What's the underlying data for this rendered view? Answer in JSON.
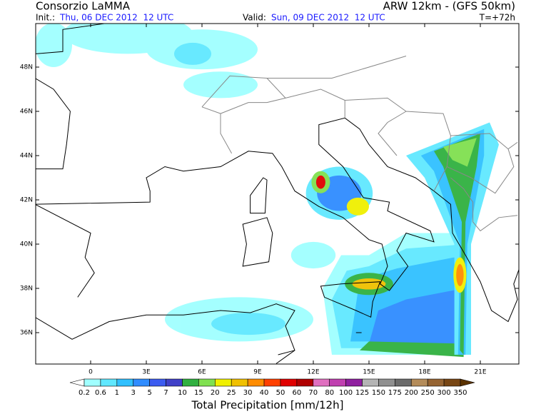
{
  "header": {
    "title": "Consorzio LaMMA",
    "model": "ARW 12km - (GFS 50km)",
    "init_label": "Init.:",
    "init": "Thu, 06 DEC 2012  12 UTC",
    "valid_label": "Valid:",
    "valid": "Sun, 09 DEC 2012  12 UTC",
    "lead": "T=+72h"
  },
  "map": {
    "lat_labels": [
      "36N",
      "38N",
      "40N",
      "42N",
      "44N",
      "46N",
      "48N"
    ],
    "lon_labels": [
      "0",
      "3E",
      "6E",
      "9E",
      "12E",
      "15E",
      "18E",
      "21E"
    ]
  },
  "colorbar": {
    "levels": [
      0.2,
      0.6,
      1,
      3,
      5,
      7,
      10,
      15,
      20,
      25,
      30,
      40,
      50,
      60,
      70,
      80,
      100,
      125,
      150,
      175,
      200,
      250,
      300,
      350
    ],
    "colors": [
      "#ffffff",
      "#a0ffff",
      "#60e8ff",
      "#30c0ff",
      "#2f8cff",
      "#3c5cf0",
      "#4040c8",
      "#30b040",
      "#80e050",
      "#f0f000",
      "#f0c000",
      "#ff8c00",
      "#ff4000",
      "#e00000",
      "#b00000",
      "#e070c0",
      "#c040b0",
      "#9020a0",
      "#b4b4b4",
      "#909090",
      "#6c6c6c",
      "#b48c5a",
      "#966432",
      "#784614",
      "#5a3200"
    ],
    "title": "Total Precipitation [mm/12h]"
  }
}
